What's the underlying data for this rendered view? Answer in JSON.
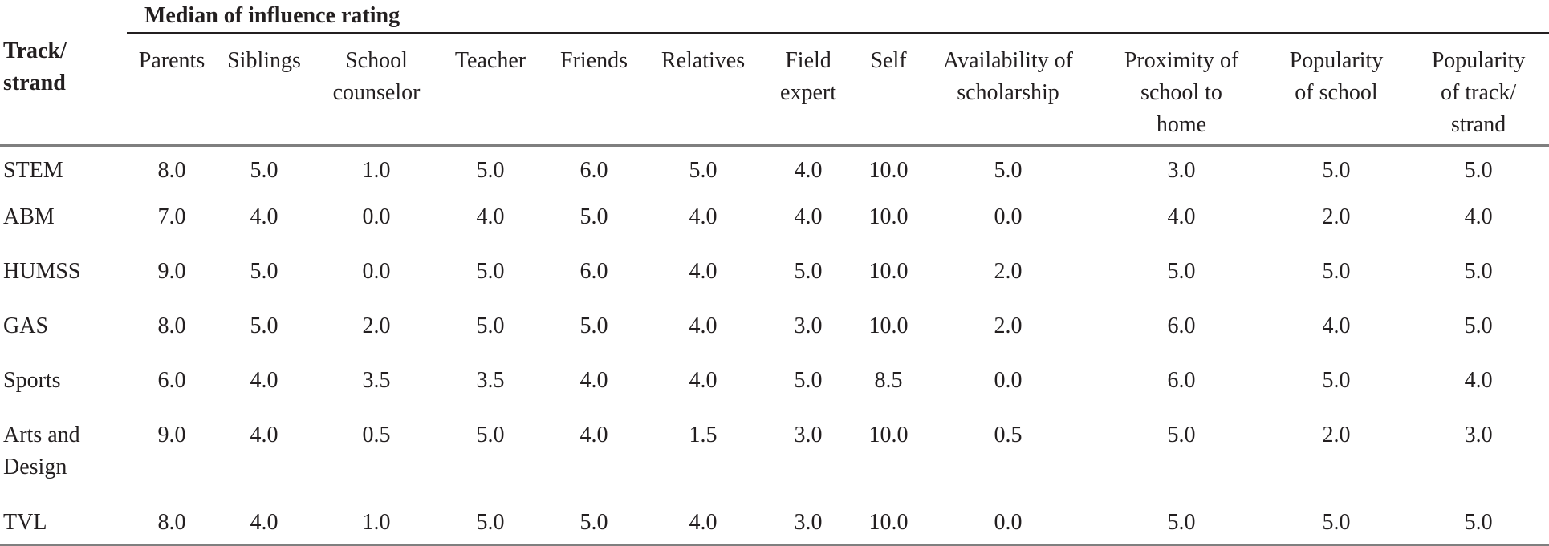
{
  "table": {
    "group_header": "Median of influence rating",
    "row_header_label": "Track/\nstrand",
    "columns": [
      "Parents",
      "Siblings",
      "School\ncounselor",
      "Teacher",
      "Friends",
      "Relatives",
      "Field\nexpert",
      "Self",
      "Availability of\nscholarship",
      "Proximity of\nschool to\nhome",
      "Popularity\nof school",
      "Popularity\nof track/\nstrand"
    ],
    "rows": [
      {
        "track": "STEM",
        "values": [
          "8.0",
          "5.0",
          "1.0",
          "5.0",
          "6.0",
          "5.0",
          "4.0",
          "10.0",
          "5.0",
          "3.0",
          "5.0",
          "5.0"
        ]
      },
      {
        "track": "ABM",
        "values": [
          "7.0",
          "4.0",
          "0.0",
          "4.0",
          "5.0",
          "4.0",
          "4.0",
          "10.0",
          "0.0",
          "4.0",
          "2.0",
          "4.0"
        ]
      },
      {
        "track": "HUMSS",
        "values": [
          "9.0",
          "5.0",
          "0.0",
          "5.0",
          "6.0",
          "4.0",
          "5.0",
          "10.0",
          "2.0",
          "5.0",
          "5.0",
          "5.0"
        ]
      },
      {
        "track": "GAS",
        "values": [
          "8.0",
          "5.0",
          "2.0",
          "5.0",
          "5.0",
          "4.0",
          "3.0",
          "10.0",
          "2.0",
          "6.0",
          "4.0",
          "5.0"
        ]
      },
      {
        "track": "Sports",
        "values": [
          "6.0",
          "4.0",
          "3.5",
          "3.5",
          "4.0",
          "4.0",
          "5.0",
          "8.5",
          "0.0",
          "6.0",
          "5.0",
          "4.0"
        ]
      },
      {
        "track": "Arts and\nDesign",
        "values": [
          "9.0",
          "4.0",
          "0.5",
          "5.0",
          "4.0",
          "1.5",
          "3.0",
          "10.0",
          "0.5",
          "5.0",
          "2.0",
          "3.0"
        ]
      },
      {
        "track": "TVL",
        "values": [
          "8.0",
          "4.0",
          "1.0",
          "5.0",
          "5.0",
          "4.0",
          "3.0",
          "10.0",
          "0.0",
          "5.0",
          "5.0",
          "5.0"
        ]
      }
    ]
  }
}
